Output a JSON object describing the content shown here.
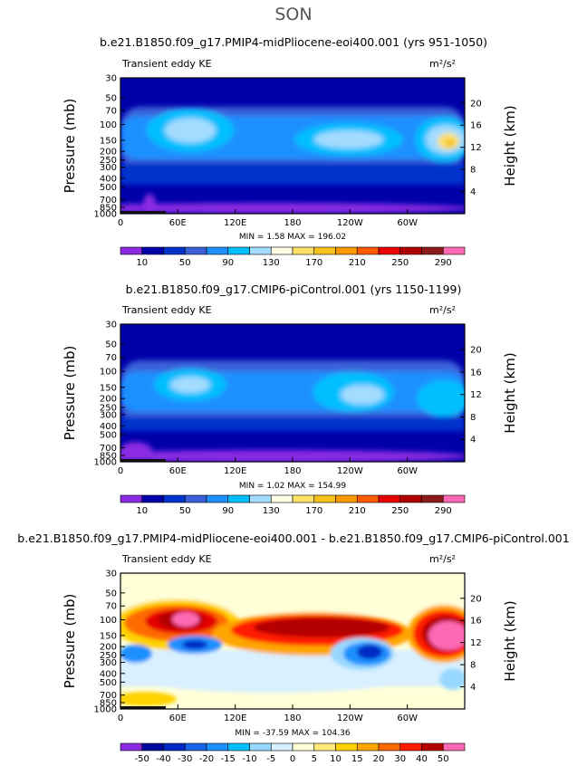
{
  "season": "SON",
  "colors": {
    "absolute": [
      "#8a2be2",
      "#0000aa",
      "#0033cc",
      "#3a60d8",
      "#1e90ff",
      "#00bfff",
      "#a3dcff",
      "#ffffe6",
      "#fde168",
      "#f6c21b",
      "#ff9900",
      "#ff5a00",
      "#e60000",
      "#b00000",
      "#8b1a1a",
      "#ff69b4"
    ],
    "difference": [
      "#8a2be2",
      "#000a9a",
      "#0029c4",
      "#1863e6",
      "#1e90ff",
      "#00bfff",
      "#96d8ff",
      "#d8f0ff",
      "#ffffd8",
      "#ffe978",
      "#ffd200",
      "#ffa500",
      "#ff6a00",
      "#ff1a00",
      "#b40000",
      "#ff69b4"
    ]
  },
  "panels": [
    {
      "title": "b.e21.B1850.f09_g17.PMIP4-midPliocene-eoi400.001 (yrs 951-1050)",
      "variable_label": "Transient eddy KE",
      "units": "m²/s²",
      "y_left_label": "Pressure  (mb)",
      "y_right_label": "Height  (km)",
      "stats": "MIN =    1.58   MAX = 196.02",
      "colorbar_labels": [
        "10",
        "50",
        "90",
        "130",
        "170",
        "210",
        "250",
        "290"
      ]
    },
    {
      "title": "b.e21.B1850.f09_g17.CMIP6-piControl.001 (yrs 1150-1199)",
      "variable_label": "Transient eddy KE",
      "units": "m²/s²",
      "y_left_label": "Pressure  (mb)",
      "y_right_label": "Height  (km)",
      "stats": "MIN =    1.02   MAX = 154.99",
      "colorbar_labels": [
        "10",
        "50",
        "90",
        "130",
        "170",
        "210",
        "250",
        "290"
      ]
    },
    {
      "title": "b.e21.B1850.f09_g17.PMIP4-midPliocene-eoi400.001 - b.e21.B1850.f09_g17.CMIP6-piControl.001",
      "variable_label": "Transient eddy KE",
      "units": "m²/s²",
      "y_left_label": "Pressure  (mb)",
      "y_right_label": "Height  (km)",
      "stats": "MIN = -37.59   MAX = 104.36",
      "colorbar_labels": [
        "-50",
        "-40",
        "-30",
        "-20",
        "-15",
        "-10",
        "-5",
        "0",
        "5",
        "10",
        "15",
        "20",
        "30",
        "40",
        "50"
      ]
    }
  ],
  "chart_data": [
    {
      "type": "heatmap",
      "title": "b.e21.B1850.f09_g17.PMIP4-midPliocene-eoi400.001 (yrs 951-1050)",
      "x_tick_labels": [
        "0",
        "60E",
        "120E",
        "180",
        "120W",
        "60W"
      ],
      "x_ticks_deg": [
        0,
        60,
        120,
        180,
        240,
        300
      ],
      "xlim_deg": [
        0,
        360
      ],
      "y_tick_labels_pressure": [
        "30",
        "50",
        "70",
        "100",
        "150",
        "200",
        "250",
        "300",
        "400",
        "500",
        "700",
        "850",
        "1000"
      ],
      "y_ticks_pressure_mb": [
        30,
        50,
        70,
        100,
        150,
        200,
        250,
        300,
        400,
        500,
        700,
        850,
        1000
      ],
      "ylim_pressure_mb": [
        1000,
        30
      ],
      "y_scale": "log",
      "y_tick_labels_height_km": [
        "4",
        "8",
        "12",
        "16",
        "20"
      ],
      "y_ticks_height_km": [
        4,
        8,
        12,
        16,
        20
      ],
      "min": 1.58,
      "max": 196.02,
      "levels": [
        10,
        30,
        50,
        70,
        90,
        110,
        130,
        150,
        170,
        190,
        210,
        230,
        250,
        270,
        290
      ],
      "features": [
        {
          "lon": 65,
          "p": 120,
          "value": 140
        },
        {
          "lon": 205,
          "p": 160,
          "value": 145
        },
        {
          "lon": 345,
          "p": 165,
          "value": 190
        }
      ]
    },
    {
      "type": "heatmap",
      "title": "b.e21.B1850.f09_g17.CMIP6-piControl.001 (yrs 1150-1199)",
      "x_tick_labels": [
        "0",
        "60E",
        "120E",
        "180",
        "120W",
        "60W"
      ],
      "xlim_deg": [
        0,
        360
      ],
      "y_scale": "log",
      "ylim_pressure_mb": [
        1000,
        30
      ],
      "min": 1.02,
      "max": 154.99,
      "levels": [
        10,
        30,
        50,
        70,
        90,
        110,
        130,
        150,
        170,
        190,
        210,
        230,
        250,
        270,
        290
      ],
      "features": [
        {
          "lon": 70,
          "p": 150,
          "value": 130
        },
        {
          "lon": 250,
          "p": 180,
          "value": 140
        },
        {
          "lon": 350,
          "p": 190,
          "value": 110
        }
      ]
    },
    {
      "type": "heatmap",
      "title": "b.e21.B1850.f09_g17.PMIP4-midPliocene-eoi400.001 - b.e21.B1850.f09_g17.CMIP6-piControl.001",
      "x_tick_labels": [
        "0",
        "60E",
        "120E",
        "180",
        "120W",
        "60W"
      ],
      "xlim_deg": [
        0,
        360
      ],
      "y_scale": "log",
      "ylim_pressure_mb": [
        1000,
        30
      ],
      "min": -37.59,
      "max": 104.36,
      "levels": [
        -50,
        -40,
        -30,
        -20,
        -15,
        -10,
        -5,
        0,
        5,
        10,
        15,
        20,
        30,
        40,
        50
      ],
      "features": [
        {
          "lon": 65,
          "p": 110,
          "value": 60
        },
        {
          "lon": 200,
          "p": 120,
          "value": 40
        },
        {
          "lon": 350,
          "p": 130,
          "value": 104
        },
        {
          "lon": 250,
          "p": 240,
          "value": -35
        },
        {
          "lon": 80,
          "p": 160,
          "value": -25
        },
        {
          "lon": 10,
          "p": 240,
          "value": -20
        }
      ]
    }
  ]
}
